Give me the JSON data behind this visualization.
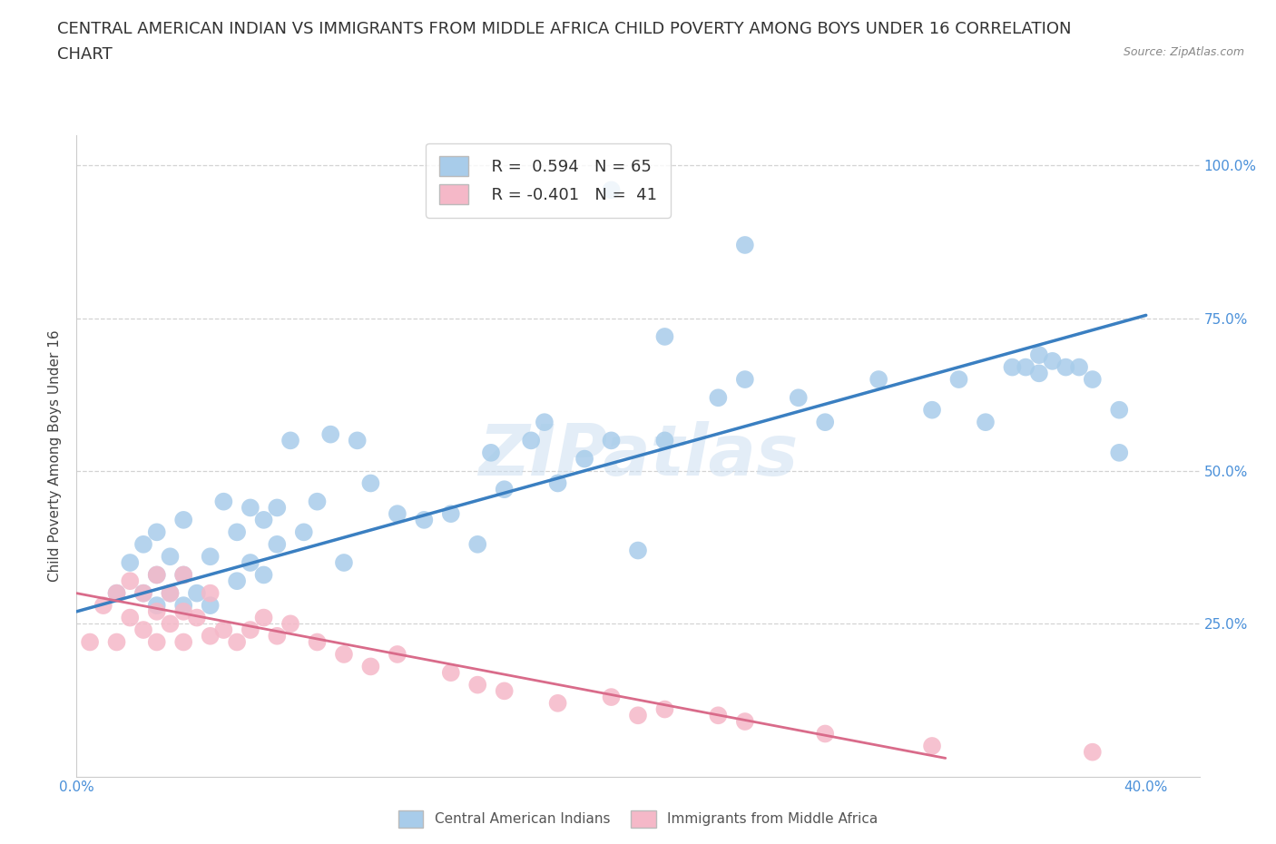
{
  "title_line1": "CENTRAL AMERICAN INDIAN VS IMMIGRANTS FROM MIDDLE AFRICA CHILD POVERTY AMONG BOYS UNDER 16 CORRELATION",
  "title_line2": "CHART",
  "source": "Source: ZipAtlas.com",
  "ylabel": "Child Poverty Among Boys Under 16",
  "xlim": [
    0.0,
    0.42
  ],
  "ylim": [
    0.0,
    1.05
  ],
  "yticks": [
    0.25,
    0.5,
    0.75,
    1.0
  ],
  "ytick_labels": [
    "25.0%",
    "50.0%",
    "75.0%",
    "100.0%"
  ],
  "xticks": [
    0.0,
    0.1,
    0.2,
    0.3,
    0.4
  ],
  "xtick_labels": [
    "0.0%",
    "",
    "",
    "",
    "40.0%"
  ],
  "legend_r1": "R =  0.594   N = 65",
  "legend_r2": "R = -0.401   N =  41",
  "blue_color": "#A8CCEA",
  "pink_color": "#F5B8C8",
  "line_blue": "#3A7FC1",
  "line_pink": "#D96B8A",
  "watermark": "ZIPatlas",
  "blue_scatter_x": [
    0.015,
    0.02,
    0.025,
    0.025,
    0.03,
    0.03,
    0.03,
    0.035,
    0.035,
    0.04,
    0.04,
    0.04,
    0.045,
    0.05,
    0.05,
    0.055,
    0.06,
    0.06,
    0.065,
    0.065,
    0.07,
    0.07,
    0.075,
    0.075,
    0.08,
    0.085,
    0.09,
    0.095,
    0.1,
    0.105,
    0.11,
    0.12,
    0.13,
    0.14,
    0.15,
    0.155,
    0.16,
    0.17,
    0.175,
    0.18,
    0.19,
    0.2,
    0.21,
    0.22,
    0.24,
    0.25,
    0.27,
    0.28,
    0.3,
    0.32,
    0.33,
    0.34,
    0.355,
    0.36,
    0.365,
    0.37,
    0.38,
    0.39,
    0.22,
    0.35,
    0.36,
    0.375,
    0.39,
    0.25,
    0.2
  ],
  "blue_scatter_y": [
    0.3,
    0.35,
    0.3,
    0.38,
    0.28,
    0.33,
    0.4,
    0.3,
    0.36,
    0.28,
    0.33,
    0.42,
    0.3,
    0.28,
    0.36,
    0.45,
    0.32,
    0.4,
    0.35,
    0.44,
    0.33,
    0.42,
    0.38,
    0.44,
    0.55,
    0.4,
    0.45,
    0.56,
    0.35,
    0.55,
    0.48,
    0.43,
    0.42,
    0.43,
    0.38,
    0.53,
    0.47,
    0.55,
    0.58,
    0.48,
    0.52,
    0.55,
    0.37,
    0.55,
    0.62,
    0.65,
    0.62,
    0.58,
    0.65,
    0.6,
    0.65,
    0.58,
    0.67,
    0.66,
    0.68,
    0.67,
    0.65,
    0.53,
    0.72,
    0.67,
    0.69,
    0.67,
    0.6,
    0.87,
    0.96
  ],
  "pink_scatter_x": [
    0.005,
    0.01,
    0.015,
    0.015,
    0.02,
    0.02,
    0.025,
    0.025,
    0.03,
    0.03,
    0.03,
    0.035,
    0.035,
    0.04,
    0.04,
    0.04,
    0.045,
    0.05,
    0.05,
    0.055,
    0.06,
    0.065,
    0.07,
    0.075,
    0.08,
    0.09,
    0.1,
    0.11,
    0.12,
    0.14,
    0.15,
    0.16,
    0.18,
    0.2,
    0.21,
    0.22,
    0.24,
    0.25,
    0.28,
    0.32,
    0.38
  ],
  "pink_scatter_y": [
    0.22,
    0.28,
    0.22,
    0.3,
    0.26,
    0.32,
    0.24,
    0.3,
    0.22,
    0.27,
    0.33,
    0.25,
    0.3,
    0.22,
    0.27,
    0.33,
    0.26,
    0.23,
    0.3,
    0.24,
    0.22,
    0.24,
    0.26,
    0.23,
    0.25,
    0.22,
    0.2,
    0.18,
    0.2,
    0.17,
    0.15,
    0.14,
    0.12,
    0.13,
    0.1,
    0.11,
    0.1,
    0.09,
    0.07,
    0.05,
    0.04
  ],
  "blue_line_x": [
    0.0,
    0.4
  ],
  "blue_line_y": [
    0.27,
    0.755
  ],
  "pink_line_x": [
    0.0,
    0.325
  ],
  "pink_line_y": [
    0.3,
    0.03
  ],
  "background_color": "#FFFFFF",
  "grid_color": "#C8C8C8",
  "title_fontsize": 13,
  "axis_label_fontsize": 11,
  "tick_fontsize": 11,
  "legend_fontsize": 13
}
